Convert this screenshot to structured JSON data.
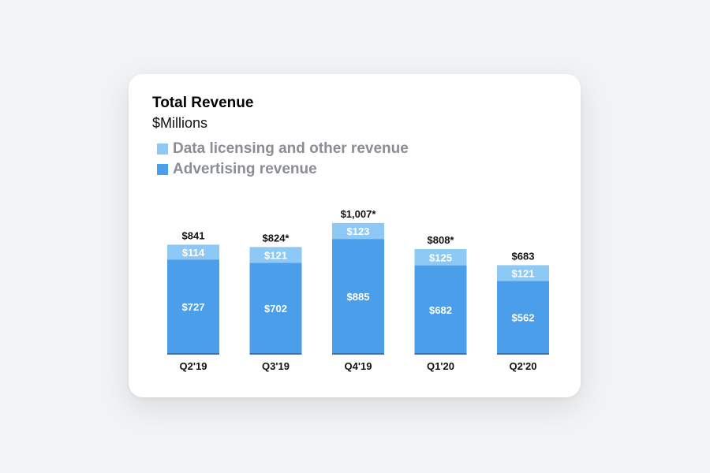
{
  "colors": {
    "advertising": "#4a9eea",
    "data_licensing": "#8ec9f5"
  },
  "chart_data": {
    "type": "bar",
    "stacked": true,
    "title": "Total Revenue",
    "subtitle": "$Millions",
    "legend_position": "top-left",
    "categories": [
      "Q2'19",
      "Q3'19",
      "Q4'19",
      "Q1'20",
      "Q2'20"
    ],
    "series": [
      {
        "name": "Advertising revenue",
        "values": [
          727,
          702,
          885,
          682,
          562
        ],
        "labels": [
          "$727",
          "$702",
          "$885",
          "$682",
          "$562"
        ]
      },
      {
        "name": "Data licensing and other revenue",
        "values": [
          114,
          121,
          123,
          125,
          121
        ],
        "labels": [
          "$114",
          "$121",
          "$123",
          "$125",
          "$121"
        ]
      }
    ],
    "totals": [
      841,
      824,
      1007,
      808,
      683
    ],
    "total_labels": [
      "$841",
      "$824*",
      "$1,007*",
      "$808*",
      "$683"
    ],
    "ylim": [
      0,
      1007
    ]
  }
}
